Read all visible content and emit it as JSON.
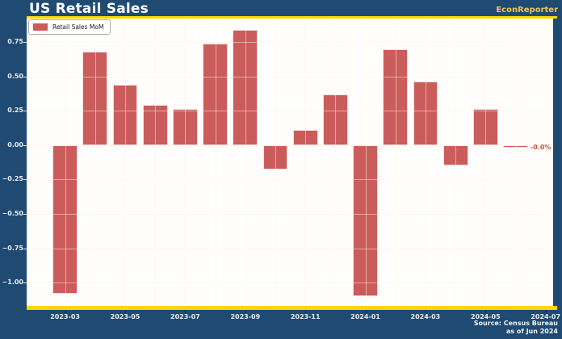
{
  "header": {
    "title": "US Retail Sales",
    "brand": "EconReporter"
  },
  "legend": {
    "label": "Retail Sales MoM"
  },
  "source": {
    "line1": "Source: Census Bureau",
    "line2": "as of Jun 2024"
  },
  "colors": {
    "background": "#1F4A72",
    "plot_background": "#FFFEFC",
    "bar": "#CB5C5C",
    "bar_edge": "#F3DEDE",
    "gridline": "rgba(255,246,216,0.5)",
    "accent_yellow": "#FFD700",
    "brand_gold": "#F3C44D",
    "axis_text": "#E9EDF2",
    "legend_border": "#ADADAD",
    "legend_text": "#1A1A1A",
    "annotation_red": "#C7504E",
    "y_tick_mark": "#D9DEE4",
    "x_tick_mark": "rgba(8,28,52,0.55)"
  },
  "chart_data": {
    "type": "bar",
    "title": "US Retail Sales",
    "series_name": "Retail Sales MoM",
    "categories": [
      "2023-03",
      "2023-04",
      "2023-05",
      "2023-06",
      "2023-07",
      "2023-08",
      "2023-09",
      "2023-10",
      "2023-11",
      "2023-12",
      "2024-01",
      "2024-02",
      "2024-03",
      "2024-04",
      "2024-05",
      "2024-06"
    ],
    "values": [
      -1.08,
      0.68,
      0.44,
      0.29,
      0.26,
      0.74,
      0.84,
      -0.18,
      0.11,
      0.37,
      -1.1,
      0.7,
      0.46,
      -0.15,
      0.26,
      -0.02
    ],
    "x_tick_indices": [
      0,
      2,
      4,
      6,
      8,
      10,
      12,
      14,
      16
    ],
    "x_tick_labels": [
      "2023-03",
      "2023-05",
      "2023-07",
      "2023-09",
      "2023-11",
      "2024-01",
      "2024-03",
      "2024-05",
      "2024-07"
    ],
    "y_ticks": [
      0.75,
      0.5,
      0.25,
      0.0,
      -0.25,
      -0.5,
      -0.75,
      -1.0
    ],
    "y_tick_labels": [
      "0.75",
      "0.50",
      "0.25",
      "0.00",
      "−0.25",
      "−0.50",
      "−0.75",
      "−1.00"
    ],
    "ylim": [
      -1.17,
      0.92
    ],
    "xlim_months": [
      -1.28,
      16.25
    ],
    "bar_width_months": 0.83,
    "grid": "on",
    "legend_position": "upper left",
    "annotation": {
      "text": "-0.0%",
      "index": 15
    },
    "xlabel": "",
    "ylabel": ""
  }
}
